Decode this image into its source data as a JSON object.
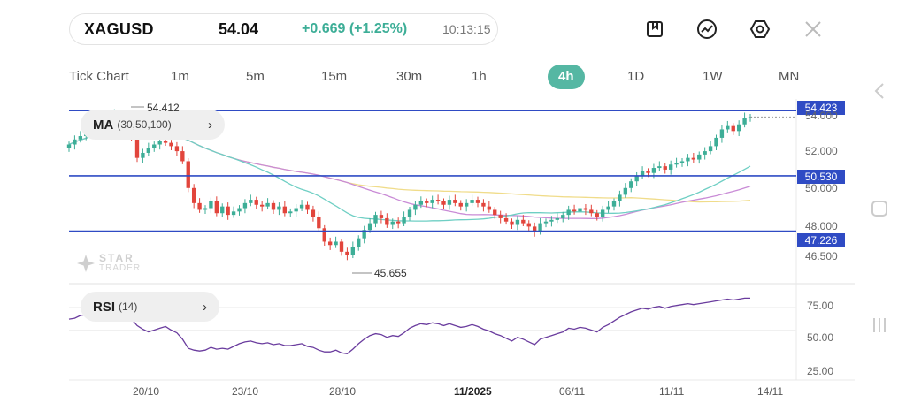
{
  "header": {
    "symbol": "XAGUSD",
    "price": "54.04",
    "change": "+0.669 (+1.25%)",
    "time": "10:13:15"
  },
  "toolbar": {
    "icons": [
      "bookmark-icon",
      "trend-line-icon",
      "settings-hexagon-icon",
      "close-icon"
    ]
  },
  "timeframes": [
    "Tick Chart",
    "1m",
    "5m",
    "15m",
    "30m",
    "1h",
    "4h",
    "1D",
    "1W",
    "MN"
  ],
  "active_timeframe": "4h",
  "indicators": {
    "ma": {
      "name": "MA",
      "params": "(30,50,100)"
    },
    "rsi": {
      "name": "RSI",
      "params": "(14)"
    }
  },
  "price_lines": [
    {
      "label": "54.423",
      "value": 54.423
    },
    {
      "label": "50.530",
      "value": 50.53
    },
    {
      "label": "47.226",
      "value": 47.226
    }
  ],
  "y_axis_labels": [
    "54.000",
    "52.000",
    "50.000",
    "48.000",
    "46.500"
  ],
  "rsi_axis_labels": [
    "75.00",
    "50.00",
    "25.00"
  ],
  "annotations": {
    "high": "54.412",
    "low": "45.655"
  },
  "x_axis_labels": [
    {
      "text": "20/10",
      "bold": false
    },
    {
      "text": "23/10",
      "bold": false
    },
    {
      "text": "28/10",
      "bold": false
    },
    {
      "text": "11/2025",
      "bold": true
    },
    {
      "text": "06/11",
      "bold": false
    },
    {
      "text": "11/11",
      "bold": false
    },
    {
      "text": "14/11",
      "bold": false
    }
  ],
  "watermark": {
    "line1": "STAR",
    "line2": "TRADER"
  },
  "colors": {
    "up": "#3dae97",
    "down": "#e2453c",
    "line": "#2f4bc4",
    "ma30": "#6fcfc4",
    "ma50": "#c98bd6",
    "ma100": "#f0dc8a",
    "rsi": "#6a3c9e",
    "accent": "#55b7a3"
  },
  "chart_data": {
    "type": "candlestick",
    "y_range": [
      45.2,
      54.8
    ],
    "closes": [
      52.4,
      52.7,
      52.9,
      53.1,
      53.4,
      53.2,
      53.6,
      54.0,
      54.2,
      53.9,
      53.5,
      52.8,
      51.6,
      51.9,
      52.2,
      52.4,
      52.6,
      52.5,
      52.3,
      52.0,
      51.4,
      49.8,
      48.9,
      48.5,
      48.6,
      49.0,
      48.3,
      48.7,
      48.2,
      48.4,
      48.6,
      48.9,
      49.1,
      48.8,
      48.7,
      48.9,
      48.5,
      48.7,
      48.3,
      48.4,
      48.6,
      48.8,
      48.5,
      48.1,
      47.4,
      46.6,
      46.4,
      46.6,
      46.0,
      45.8,
      46.3,
      46.8,
      47.3,
      47.7,
      48.2,
      48.0,
      47.6,
      47.8,
      47.7,
      48.1,
      48.5,
      48.8,
      49.0,
      48.9,
      49.1,
      49.0,
      48.8,
      49.1,
      48.9,
      48.7,
      48.9,
      49.1,
      48.9,
      48.7,
      48.5,
      48.2,
      48.0,
      47.8,
      47.6,
      47.9,
      47.7,
      47.5,
      47.2,
      47.7,
      47.8,
      47.9,
      48.0,
      48.2,
      48.5,
      48.4,
      48.6,
      48.5,
      48.3,
      48.1,
      48.5,
      48.7,
      49.0,
      49.4,
      49.8,
      50.2,
      50.5,
      50.8,
      50.7,
      51.0,
      51.1,
      50.9,
      51.2,
      51.3,
      51.4,
      51.6,
      51.5,
      51.8,
      52.0,
      52.3,
      52.8,
      53.3,
      53.5,
      53.2,
      53.6,
      54.0,
      54.04
    ],
    "rsi": [
      62,
      63,
      66,
      67,
      63,
      60,
      66,
      67,
      64,
      66,
      68,
      62,
      55,
      51,
      48,
      50,
      52,
      54,
      50,
      47,
      40,
      30,
      28,
      27,
      28,
      31,
      29,
      30,
      29,
      32,
      35,
      37,
      38,
      36,
      35,
      36,
      34,
      35,
      33,
      33,
      34,
      35,
      32,
      31,
      28,
      26,
      26,
      28,
      25,
      24,
      29,
      35,
      40,
      44,
      46,
      45,
      42,
      44,
      43,
      47,
      52,
      55,
      57,
      56,
      58,
      57,
      55,
      57,
      55,
      53,
      54,
      56,
      54,
      51,
      49,
      46,
      44,
      41,
      38,
      42,
      40,
      37,
      34,
      40,
      42,
      44,
      46,
      48,
      52,
      51,
      53,
      52,
      50,
      48,
      53,
      56,
      60,
      64,
      67,
      70,
      72,
      74,
      73,
      75,
      76,
      74,
      76,
      77,
      78,
      79,
      78,
      79,
      80,
      81,
      82,
      83,
      84,
      83,
      84,
      85,
      85
    ]
  }
}
